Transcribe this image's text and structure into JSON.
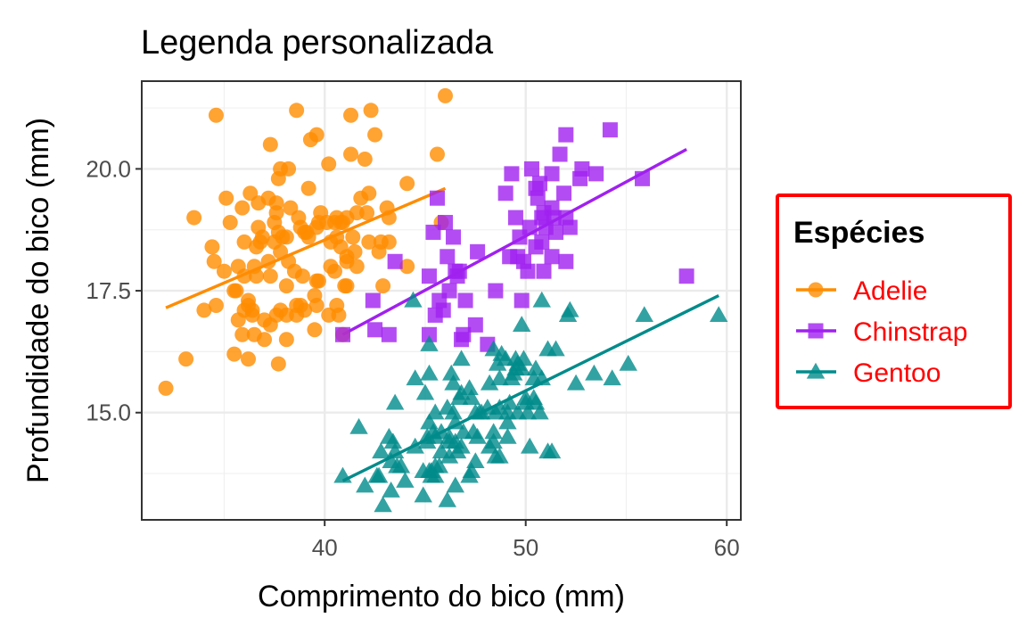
{
  "chart_data": {
    "type": "scatter",
    "title": "Legenda personalizada",
    "xlabel": "Comprimento do bico (mm)",
    "ylabel": "Profundidade do bico (mm)",
    "xlim": [
      30.9,
      60.7
    ],
    "ylim": [
      12.8,
      21.8
    ],
    "x_ticks": [
      40,
      50,
      60
    ],
    "y_ticks": [
      15.0,
      17.5,
      20.0
    ],
    "x_tick_labels": [
      "40",
      "50",
      "60"
    ],
    "y_tick_labels": [
      "15.0",
      "17.5",
      "20.0"
    ],
    "grid": true,
    "legend": {
      "title": "Espécies",
      "position": "right",
      "border_color": "#ff0000",
      "label_color": "#ff0000"
    },
    "series": [
      {
        "name": "Adelie",
        "color": "#ff8c00",
        "marker": "circle",
        "trend": [
          [
            32.1,
            17.15
          ],
          [
            46.0,
            19.6
          ]
        ],
        "points": [
          [
            32.1,
            15.5
          ],
          [
            33.1,
            16.1
          ],
          [
            33.5,
            19.0
          ],
          [
            34.0,
            17.1
          ],
          [
            34.4,
            18.4
          ],
          [
            34.5,
            18.1
          ],
          [
            34.6,
            21.1
          ],
          [
            34.6,
            17.2
          ],
          [
            35.0,
            17.9
          ],
          [
            35.1,
            19.4
          ],
          [
            35.3,
            18.9
          ],
          [
            35.5,
            16.2
          ],
          [
            35.5,
            17.5
          ],
          [
            35.6,
            17.5
          ],
          [
            35.7,
            16.9
          ],
          [
            35.7,
            18.0
          ],
          [
            35.9,
            16.6
          ],
          [
            35.9,
            19.2
          ],
          [
            36.0,
            17.8
          ],
          [
            36.0,
            18.5
          ],
          [
            36.0,
            17.1
          ],
          [
            36.2,
            16.1
          ],
          [
            36.2,
            17.2
          ],
          [
            36.2,
            17.3
          ],
          [
            36.3,
            19.5
          ],
          [
            36.4,
            17.0
          ],
          [
            36.4,
            17.1
          ],
          [
            36.5,
            16.6
          ],
          [
            36.5,
            18.0
          ],
          [
            36.6,
            18.4
          ],
          [
            36.6,
            17.8
          ],
          [
            36.7,
            19.3
          ],
          [
            36.7,
            18.8
          ],
          [
            36.8,
            18.5
          ],
          [
            36.9,
            18.6
          ],
          [
            37.0,
            16.9
          ],
          [
            37.0,
            16.5
          ],
          [
            37.2,
            18.1
          ],
          [
            37.2,
            19.4
          ],
          [
            37.3,
            17.8
          ],
          [
            37.3,
            16.8
          ],
          [
            37.3,
            20.5
          ],
          [
            37.5,
            18.9
          ],
          [
            37.5,
            18.5
          ],
          [
            37.6,
            17.0
          ],
          [
            37.6,
            19.1
          ],
          [
            37.6,
            19.3
          ],
          [
            37.7,
            19.8
          ],
          [
            37.7,
            18.7
          ],
          [
            37.7,
            16.0
          ],
          [
            37.8,
            17.1
          ],
          [
            37.8,
            18.3
          ],
          [
            37.8,
            20.0
          ],
          [
            37.9,
            18.6
          ],
          [
            38.1,
            18.6
          ],
          [
            38.1,
            17.0
          ],
          [
            38.1,
            16.5
          ],
          [
            38.1,
            17.6
          ],
          [
            38.2,
            18.1
          ],
          [
            38.2,
            20.0
          ],
          [
            38.3,
            19.2
          ],
          [
            38.5,
            17.9
          ],
          [
            38.6,
            21.2
          ],
          [
            38.6,
            17.2
          ],
          [
            38.6,
            17.0
          ],
          [
            38.7,
            19.0
          ],
          [
            38.8,
            17.2
          ],
          [
            38.8,
            18.8
          ],
          [
            38.9,
            17.8
          ],
          [
            39.0,
            17.1
          ],
          [
            39.0,
            18.7
          ],
          [
            39.1,
            18.7
          ],
          [
            39.2,
            19.6
          ],
          [
            39.2,
            18.6
          ],
          [
            39.3,
            20.6
          ],
          [
            39.5,
            17.4
          ],
          [
            39.5,
            16.7
          ],
          [
            39.6,
            17.7
          ],
          [
            39.6,
            18.8
          ],
          [
            39.6,
            17.2
          ],
          [
            39.6,
            20.7
          ],
          [
            39.7,
            17.7
          ],
          [
            39.7,
            18.9
          ],
          [
            39.8,
            19.1
          ],
          [
            40.1,
            18.9
          ],
          [
            40.2,
            17.0
          ],
          [
            40.2,
            20.1
          ],
          [
            40.3,
            18.0
          ],
          [
            40.3,
            18.5
          ],
          [
            40.5,
            17.9
          ],
          [
            40.5,
            18.9
          ],
          [
            40.6,
            18.6
          ],
          [
            40.6,
            17.2
          ],
          [
            40.6,
            19.0
          ],
          [
            40.7,
            17.0
          ],
          [
            40.8,
            18.4
          ],
          [
            40.8,
            18.9
          ],
          [
            40.9,
            16.6
          ],
          [
            40.9,
            18.9
          ],
          [
            41.0,
            17.6
          ],
          [
            41.1,
            17.6
          ],
          [
            41.1,
            18.2
          ],
          [
            41.1,
            19.0
          ],
          [
            41.1,
            18.1
          ],
          [
            41.3,
            20.3
          ],
          [
            41.3,
            21.1
          ],
          [
            41.4,
            18.6
          ],
          [
            41.5,
            18.3
          ],
          [
            41.6,
            18.0
          ],
          [
            41.6,
            19.1
          ],
          [
            41.8,
            19.4
          ],
          [
            42.0,
            20.2
          ],
          [
            42.1,
            19.1
          ],
          [
            42.2,
            18.5
          ],
          [
            42.2,
            19.5
          ],
          [
            42.3,
            21.2
          ],
          [
            42.5,
            20.7
          ],
          [
            42.7,
            18.3
          ],
          [
            42.8,
            18.5
          ],
          [
            42.9,
            17.6
          ],
          [
            43.1,
            19.2
          ],
          [
            43.2,
            18.5
          ],
          [
            43.2,
            19.0
          ],
          [
            44.1,
            19.7
          ],
          [
            44.1,
            18.0
          ],
          [
            45.6,
            20.3
          ],
          [
            45.8,
            18.9
          ],
          [
            46.0,
            21.5
          ]
        ]
      },
      {
        "name": "Chinstrap",
        "color": "#a020f0",
        "marker": "square",
        "trend": [
          [
            40.9,
            16.6
          ],
          [
            58.0,
            20.4
          ]
        ],
        "points": [
          [
            40.9,
            16.6
          ],
          [
            42.4,
            17.3
          ],
          [
            42.5,
            16.7
          ],
          [
            43.2,
            16.6
          ],
          [
            43.5,
            18.1
          ],
          [
            45.2,
            17.8
          ],
          [
            45.2,
            16.6
          ],
          [
            45.4,
            18.7
          ],
          [
            45.5,
            17.0
          ],
          [
            45.6,
            19.4
          ],
          [
            45.7,
            17.3
          ],
          [
            45.9,
            17.1
          ],
          [
            46.0,
            18.9
          ],
          [
            46.1,
            18.2
          ],
          [
            46.2,
            17.5
          ],
          [
            46.4,
            18.6
          ],
          [
            46.5,
            17.9
          ],
          [
            46.6,
            17.8
          ],
          [
            46.7,
            17.9
          ],
          [
            46.8,
            16.5
          ],
          [
            46.9,
            16.6
          ],
          [
            47.0,
            17.3
          ],
          [
            47.5,
            16.8
          ],
          [
            47.6,
            18.3
          ],
          [
            48.1,
            16.4
          ],
          [
            48.5,
            17.5
          ],
          [
            49.0,
            19.5
          ],
          [
            49.2,
            18.2
          ],
          [
            49.3,
            19.9
          ],
          [
            49.5,
            19.0
          ],
          [
            49.6,
            18.2
          ],
          [
            49.7,
            18.6
          ],
          [
            49.8,
            17.3
          ],
          [
            49.9,
            18.1
          ],
          [
            50.1,
            17.9
          ],
          [
            50.2,
            18.8
          ],
          [
            50.3,
            20.0
          ],
          [
            50.5,
            18.4
          ],
          [
            50.5,
            19.6
          ],
          [
            50.6,
            19.4
          ],
          [
            50.7,
            19.7
          ],
          [
            50.8,
            18.5
          ],
          [
            50.8,
            19.0
          ],
          [
            50.9,
            17.9
          ],
          [
            50.9,
            19.1
          ],
          [
            51.0,
            18.8
          ],
          [
            51.3,
            18.2
          ],
          [
            51.3,
            19.2
          ],
          [
            51.3,
            19.9
          ],
          [
            51.4,
            19.0
          ],
          [
            51.5,
            18.7
          ],
          [
            51.7,
            20.3
          ],
          [
            51.9,
            19.5
          ],
          [
            52.0,
            18.1
          ],
          [
            52.0,
            19.0
          ],
          [
            52.0,
            20.7
          ],
          [
            52.2,
            18.8
          ],
          [
            52.7,
            19.8
          ],
          [
            52.8,
            20.0
          ],
          [
            53.5,
            19.9
          ],
          [
            54.2,
            20.8
          ],
          [
            55.8,
            19.8
          ],
          [
            58.0,
            17.8
          ]
        ]
      },
      {
        "name": "Gentoo",
        "color": "#008b8b",
        "marker": "triangle",
        "trend": [
          [
            40.9,
            13.6
          ],
          [
            59.6,
            17.4
          ]
        ],
        "points": [
          [
            40.9,
            13.7
          ],
          [
            41.7,
            14.7
          ],
          [
            42.0,
            13.5
          ],
          [
            42.6,
            13.7
          ],
          [
            42.7,
            13.7
          ],
          [
            42.8,
            14.2
          ],
          [
            42.9,
            13.1
          ],
          [
            43.2,
            14.5
          ],
          [
            43.3,
            13.4
          ],
          [
            43.3,
            14.0
          ],
          [
            43.4,
            14.4
          ],
          [
            43.5,
            14.2
          ],
          [
            43.5,
            15.2
          ],
          [
            43.6,
            13.9
          ],
          [
            43.8,
            13.9
          ],
          [
            44.0,
            13.6
          ],
          [
            44.4,
            17.3
          ],
          [
            44.5,
            14.3
          ],
          [
            44.5,
            15.7
          ],
          [
            44.9,
            13.8
          ],
          [
            44.9,
            13.3
          ],
          [
            45.0,
            15.4
          ],
          [
            45.1,
            14.5
          ],
          [
            45.1,
            14.4
          ],
          [
            45.2,
            13.8
          ],
          [
            45.2,
            14.8
          ],
          [
            45.2,
            15.8
          ],
          [
            45.2,
            16.4
          ],
          [
            45.3,
            13.7
          ],
          [
            45.3,
            13.8
          ],
          [
            45.4,
            14.6
          ],
          [
            45.5,
            13.7
          ],
          [
            45.5,
            13.9
          ],
          [
            45.5,
            14.5
          ],
          [
            45.5,
            15.0
          ],
          [
            45.7,
            13.9
          ],
          [
            45.8,
            14.2
          ],
          [
            45.8,
            14.6
          ],
          [
            46.1,
            13.2
          ],
          [
            46.1,
            15.1
          ],
          [
            46.2,
            14.1
          ],
          [
            46.2,
            14.4
          ],
          [
            46.2,
            14.5
          ],
          [
            46.3,
            15.8
          ],
          [
            46.4,
            15.0
          ],
          [
            46.4,
            15.6
          ],
          [
            46.5,
            13.5
          ],
          [
            46.5,
            14.4
          ],
          [
            46.5,
            14.8
          ],
          [
            46.6,
            14.2
          ],
          [
            46.7,
            15.3
          ],
          [
            46.8,
            14.3
          ],
          [
            46.8,
            15.4
          ],
          [
            46.8,
            16.1
          ],
          [
            46.9,
            14.6
          ],
          [
            47.2,
            13.7
          ],
          [
            47.2,
            15.5
          ],
          [
            47.3,
            13.8
          ],
          [
            47.3,
            15.3
          ],
          [
            47.4,
            14.6
          ],
          [
            47.5,
            14.0
          ],
          [
            47.5,
            15.0
          ],
          [
            47.6,
            14.5
          ],
          [
            47.7,
            15.0
          ],
          [
            47.8,
            15.0
          ],
          [
            48.1,
            15.1
          ],
          [
            48.2,
            14.3
          ],
          [
            48.2,
            15.6
          ],
          [
            48.4,
            14.4
          ],
          [
            48.4,
            14.6
          ],
          [
            48.4,
            16.3
          ],
          [
            48.5,
            14.1
          ],
          [
            48.5,
            15.0
          ],
          [
            48.6,
            16.0
          ],
          [
            48.7,
            14.1
          ],
          [
            48.7,
            15.1
          ],
          [
            48.7,
            15.7
          ],
          [
            48.8,
            16.2
          ],
          [
            49.0,
            16.1
          ],
          [
            49.1,
            14.5
          ],
          [
            49.1,
            14.8
          ],
          [
            49.1,
            15.0
          ],
          [
            49.2,
            15.2
          ],
          [
            49.3,
            15.7
          ],
          [
            49.4,
            15.8
          ],
          [
            49.5,
            15.9
          ],
          [
            49.5,
            16.1
          ],
          [
            49.6,
            15.0
          ],
          [
            49.6,
            16.0
          ],
          [
            49.8,
            15.9
          ],
          [
            49.8,
            16.8
          ],
          [
            49.9,
            16.1
          ],
          [
            50.0,
            15.2
          ],
          [
            50.0,
            15.3
          ],
          [
            50.1,
            15.0
          ],
          [
            50.2,
            14.3
          ],
          [
            50.4,
            15.3
          ],
          [
            50.4,
            15.7
          ],
          [
            50.5,
            15.2
          ],
          [
            50.5,
            15.9
          ],
          [
            50.7,
            15.0
          ],
          [
            50.8,
            15.7
          ],
          [
            50.8,
            17.3
          ],
          [
            51.1,
            14.2
          ],
          [
            51.1,
            16.3
          ],
          [
            51.3,
            14.2
          ],
          [
            51.5,
            16.3
          ],
          [
            52.1,
            17.0
          ],
          [
            52.2,
            17.1
          ],
          [
            52.5,
            15.6
          ],
          [
            53.4,
            15.8
          ],
          [
            54.3,
            15.7
          ],
          [
            55.1,
            16.0
          ],
          [
            55.9,
            17.0
          ],
          [
            59.6,
            17.0
          ]
        ]
      }
    ]
  }
}
